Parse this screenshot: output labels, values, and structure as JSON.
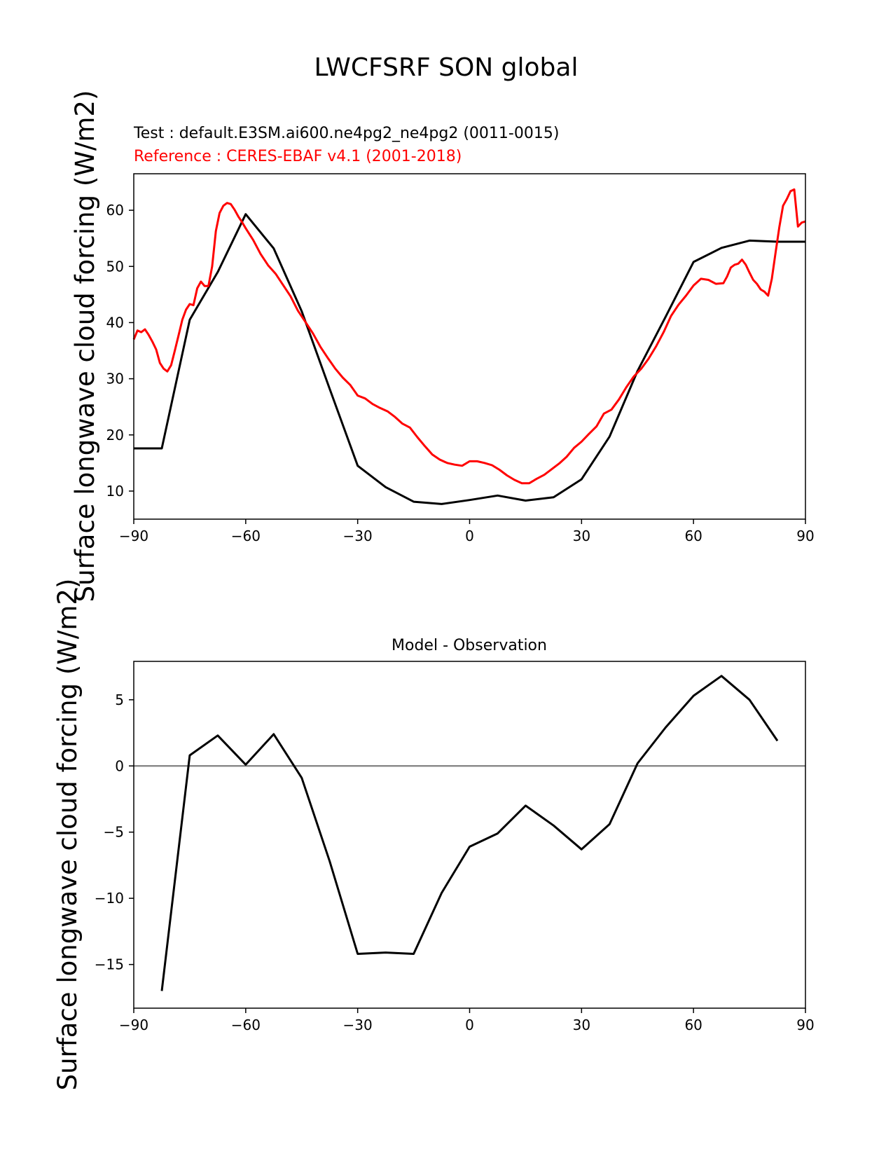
{
  "figure": {
    "suptitle": "LWCFSRF SON global"
  },
  "chart_data": [
    {
      "type": "line",
      "title_test": "Test : default.E3SM.ai600.ne4pg2_ne4pg2 (0011-0015)",
      "title_reference": "Reference : CERES-EBAF v4.1 (2001-2018)",
      "xlabel": "",
      "ylabel": "Surface longwave cloud forcing (W/m2)",
      "xlim": [
        -90,
        90
      ],
      "ylim": [
        5,
        66.5
      ],
      "xticks": [
        -90,
        -60,
        -30,
        0,
        30,
        60,
        90
      ],
      "xtick_labels": [
        "−90",
        "−60",
        "−30",
        "0",
        "30",
        "60",
        "90"
      ],
      "yticks": [
        10,
        20,
        30,
        40,
        50,
        60
      ],
      "ytick_labels": [
        "10",
        "20",
        "30",
        "40",
        "50",
        "60"
      ],
      "series": [
        {
          "name": "Test",
          "color": "#000000",
          "x": [
            -90,
            -82.5,
            -75,
            -67.5,
            -60,
            -52.5,
            -45,
            -37.5,
            -30,
            -22.5,
            -15,
            -7.5,
            0,
            7.5,
            15,
            22.5,
            30,
            37.5,
            45,
            52.5,
            60,
            67.5,
            75,
            82.5,
            90
          ],
          "y": [
            17.6,
            17.6,
            40.5,
            49.0,
            59.3,
            53.2,
            42.0,
            28.2,
            14.5,
            10.7,
            8.1,
            7.7,
            8.4,
            9.2,
            8.3,
            8.9,
            12.1,
            19.7,
            31.4,
            41.0,
            50.8,
            53.3,
            54.6,
            54.4,
            54.4
          ]
        },
        {
          "name": "Reference",
          "color": "#ff0000",
          "x": [
            -90,
            -89,
            -88,
            -87,
            -86,
            -85,
            -84,
            -83,
            -82,
            -81,
            -80,
            -79,
            -78,
            -77,
            -76,
            -75,
            -74,
            -73,
            -72,
            -71,
            -70,
            -69,
            -68,
            -67,
            -66,
            -65,
            -64,
            -63,
            -62,
            -61,
            -60,
            -58,
            -56,
            -54,
            -52,
            -50,
            -48,
            -46,
            -44,
            -42,
            -40,
            -38,
            -36,
            -34,
            -32,
            -30,
            -28,
            -26,
            -24,
            -22,
            -20,
            -18,
            -16,
            -14,
            -12,
            -10,
            -8,
            -6,
            -4,
            -2,
            0,
            2,
            4,
            6,
            8,
            10,
            12,
            14,
            16,
            18,
            20,
            22,
            24,
            26,
            28,
            30,
            32,
            34,
            36,
            38,
            40,
            42,
            44,
            46,
            48,
            50,
            52,
            54,
            56,
            58,
            60,
            62,
            64,
            66,
            68,
            69,
            70,
            71,
            72,
            73,
            74,
            75,
            76,
            77,
            78,
            79,
            80,
            81,
            82,
            83,
            84,
            85,
            86,
            87,
            88,
            89,
            90
          ],
          "y": [
            37.0,
            38.6,
            38.3,
            38.8,
            37.8,
            36.6,
            35.2,
            32.8,
            31.8,
            31.3,
            32.4,
            35.0,
            37.7,
            40.5,
            42.3,
            43.3,
            43.1,
            46.1,
            47.3,
            46.5,
            46.5,
            50.0,
            56.3,
            59.5,
            60.8,
            61.3,
            61.1,
            60.1,
            58.9,
            57.9,
            56.8,
            54.7,
            52.2,
            50.2,
            48.7,
            46.7,
            44.7,
            42.1,
            40.1,
            38.1,
            35.7,
            33.7,
            31.8,
            30.2,
            28.9,
            27.0,
            26.5,
            25.5,
            24.8,
            24.2,
            23.2,
            22.0,
            21.3,
            19.6,
            18.0,
            16.5,
            15.6,
            15.0,
            14.7,
            14.5,
            15.3,
            15.3,
            15.0,
            14.6,
            13.8,
            12.8,
            12.0,
            11.4,
            11.4,
            12.2,
            12.9,
            13.9,
            14.9,
            16.1,
            17.7,
            18.8,
            20.2,
            21.5,
            23.8,
            24.5,
            26.3,
            28.5,
            30.4,
            31.8,
            33.6,
            35.8,
            38.3,
            41.2,
            43.2,
            44.8,
            46.6,
            47.8,
            47.6,
            46.9,
            47.0,
            48.2,
            49.8,
            50.3,
            50.5,
            51.2,
            50.3,
            48.9,
            47.6,
            46.9,
            45.9,
            45.5,
            44.8,
            47.8,
            52.5,
            57.0,
            60.8,
            62.0,
            63.4,
            63.7,
            57.1,
            57.8,
            58.0
          ]
        }
      ]
    },
    {
      "type": "line",
      "title": "Model - Observation",
      "xlabel": "",
      "ylabel": "Surface longwave cloud forcing (W/m2)",
      "xlim": [
        -90,
        90
      ],
      "ylim": [
        -18.3,
        7.9
      ],
      "xticks": [
        -90,
        -60,
        -30,
        0,
        30,
        60,
        90
      ],
      "xtick_labels": [
        "−90",
        "−60",
        "−30",
        "0",
        "30",
        "60",
        "90"
      ],
      "yticks": [
        -15,
        -10,
        -5,
        0,
        5
      ],
      "ytick_labels": [
        "−15",
        "−10",
        "−5",
        "0",
        "5"
      ],
      "zero_line_color": "#808080",
      "series": [
        {
          "name": "Model - Observation",
          "color": "#000000",
          "x": [
            -82.5,
            -75,
            -67.5,
            -60,
            -52.5,
            -45,
            -37.5,
            -30,
            -22.5,
            -15,
            -7.5,
            0,
            7.5,
            15,
            22.5,
            30,
            37.5,
            45,
            52.5,
            60,
            67.5,
            75,
            82.5
          ],
          "y": [
            -17.0,
            0.8,
            2.3,
            0.1,
            2.4,
            -0.9,
            -7.2,
            -14.2,
            -14.1,
            -14.2,
            -9.6,
            -6.1,
            -5.1,
            -3.0,
            -4.5,
            -6.3,
            -4.4,
            0.2,
            2.9,
            5.3,
            6.8,
            5.0,
            1.9
          ]
        }
      ]
    }
  ]
}
